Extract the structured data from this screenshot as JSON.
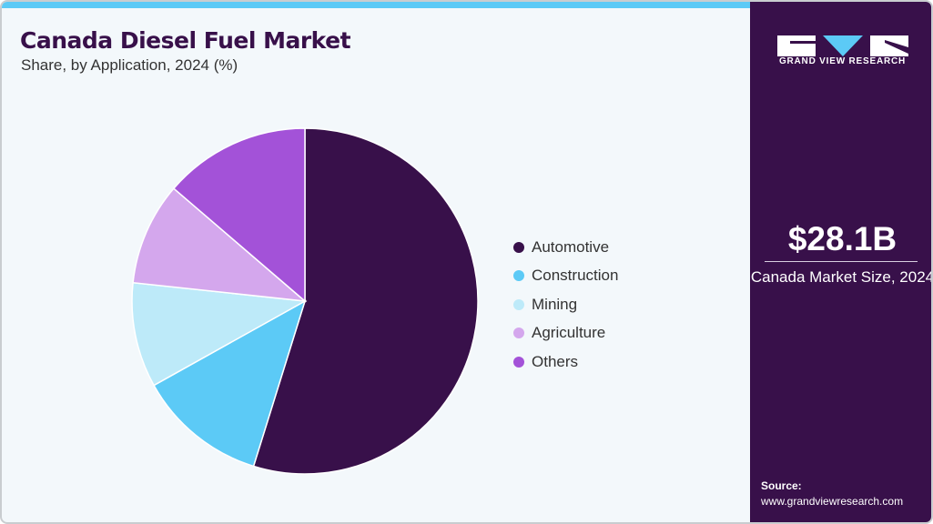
{
  "header": {
    "title": "Canada Diesel Fuel Market",
    "subtitle": "Share, by Application, 2024 (%)"
  },
  "brand": {
    "name": "GRAND VIEW RESEARCH",
    "accent": "#5ccaf6",
    "panel_color": "#38104a"
  },
  "summary": {
    "value": "$28.1B",
    "label": "Canada Market Size, 2024"
  },
  "source": {
    "label": "Source:",
    "url": "www.grandviewresearch.com"
  },
  "legend": [
    {
      "label": "Automotive",
      "color": "#38104a"
    },
    {
      "label": "Construction",
      "color": "#5ccaf6"
    },
    {
      "label": "Mining",
      "color": "#bdeaf9"
    },
    {
      "label": "Agriculture",
      "color": "#d4a7ed"
    },
    {
      "label": "Others",
      "color": "#a352d8"
    }
  ],
  "chart_data": {
    "type": "pie",
    "title": "Canada Diesel Fuel Market",
    "subtitle": "Share, by Application, 2024 (%)",
    "categories": [
      "Automotive",
      "Construction",
      "Mining",
      "Agriculture",
      "Others"
    ],
    "values": [
      54.8,
      12.1,
      9.8,
      9.6,
      13.7
    ],
    "colors": [
      "#38104a",
      "#5ccaf6",
      "#bdeaf9",
      "#d4a7ed",
      "#a352d8"
    ],
    "start_angle": "12 o'clock, clockwise",
    "legend_position": "right",
    "annotations": [
      "$28.1B Canada Market Size, 2024"
    ]
  }
}
